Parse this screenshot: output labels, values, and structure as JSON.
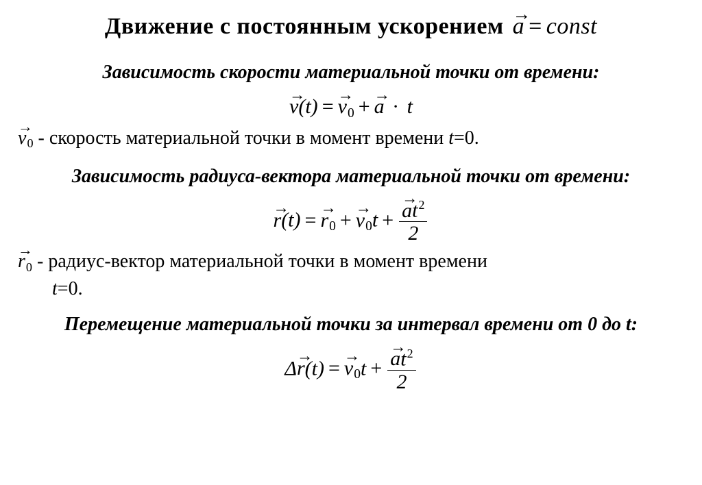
{
  "title": {
    "text": "Движение с постоянным ускорением",
    "formula_html": "<span class=\"vec\">a</span><span class=\"eq\">=</span>const"
  },
  "section1": {
    "heading": "Зависимость скорости материальной точки от времени:",
    "formula_html": "<span class=\"vec\">v</span>(t)<span class=\"eq\">=</span><span class=\"vec\">v</span><span class=\"sub\">0</span><span class=\"plus\">+</span><span class=\"vec\">a</span> <span class=\"dot\">·</span> t",
    "desc_prefix_html": "<span class=\"vec\">v</span><span class=\"sub\">0</span>",
    "desc_text": " - скорость материальной точки в момент времени ",
    "desc_tail_html": "<span class=\"it\">t</span>=0."
  },
  "section2": {
    "heading": "Зависимость радиуса-вектора материальной точки от времени:",
    "formula_html": "<span class=\"vec\">r</span>(t)<span class=\"eq\">=</span><span class=\"vec\">r</span><span class=\"sub\">0</span><span class=\"plus\">+</span><span class=\"vec\">v</span><span class=\"sub\">0</span>t<span class=\"plus\">+</span><span class=\"frac\"><span class=\"num\"><span class=\"vec\">a</span>t<span class=\"sup\">2</span></span><span class=\"den\">2</span></span>",
    "desc_prefix_html": "<span class=\"vec\">r</span><span class=\"sub\">0</span>",
    "desc_text": " - радиус-вектор материальной точки в момент времени",
    "desc_tail_html": "<span class=\"it\">t</span>=0."
  },
  "section3": {
    "heading": "Перемещение материальной точки за интервал времени от 0 до t:",
    "formula_html": "Δ<span class=\"vec\">r</span>(t)<span class=\"eq\">=</span><span class=\"vec\">v</span><span class=\"sub\">0</span>t<span class=\"plus\">+</span><span class=\"frac\"><span class=\"num\"><span class=\"vec\">a</span>t<span class=\"sup\">2</span></span><span class=\"den\">2</span></span>"
  },
  "style": {
    "background_color": "#ffffff",
    "text_color": "#000000",
    "title_fontsize": 34,
    "subheading_fontsize": 28,
    "formula_fontsize": 30,
    "body_fontsize": 28,
    "font_family": "Times New Roman"
  }
}
